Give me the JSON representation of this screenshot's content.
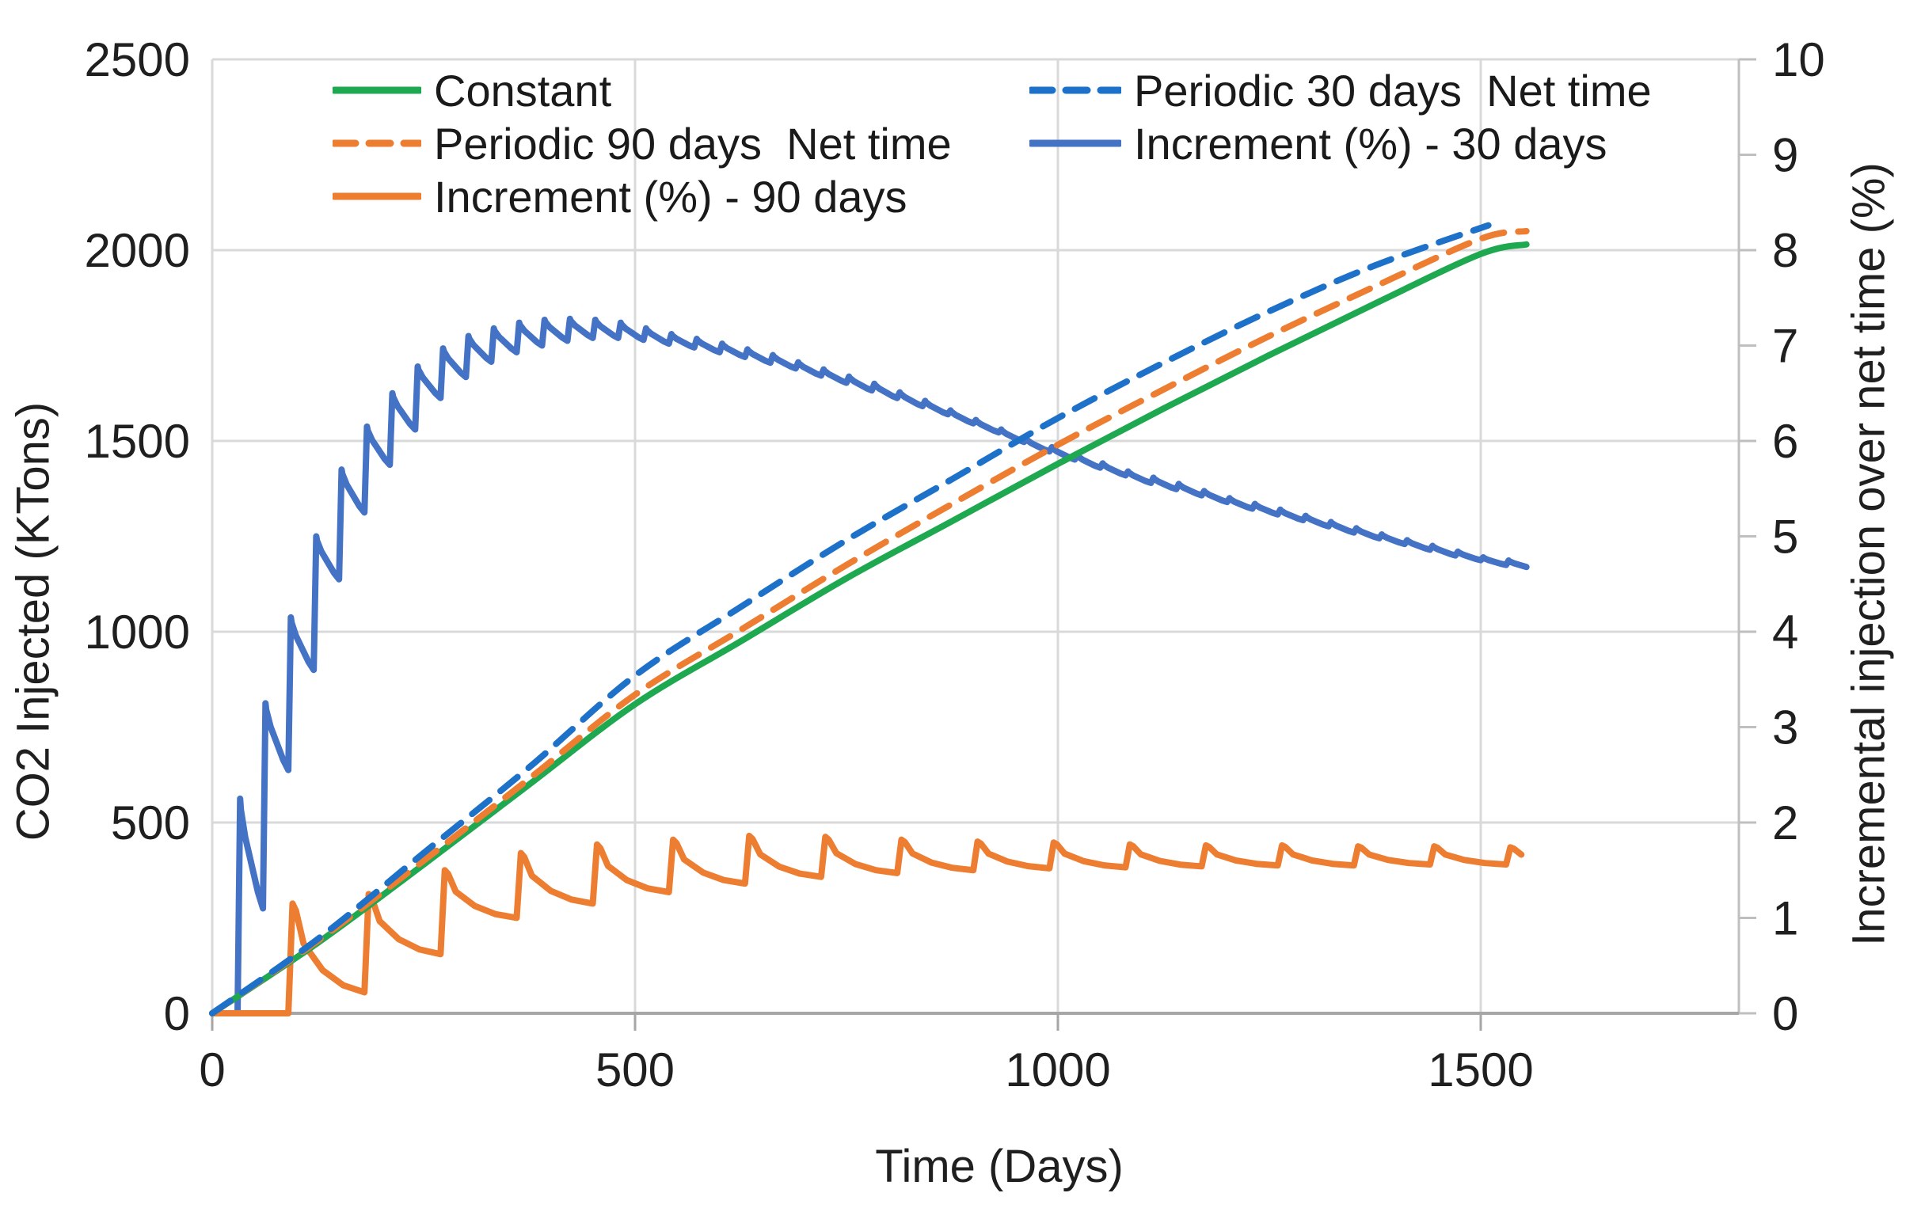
{
  "chart_data": {
    "type": "line",
    "title": "",
    "xlabel": "Time (Days)",
    "ylabel_left": "CO2 Injected (KTons)",
    "ylabel_right": "Incremental injection over net time (%)",
    "xlim": [
      0,
      1800
    ],
    "x_ticks": [
      0,
      500,
      1000,
      1500
    ],
    "ylim_left": [
      0,
      2500
    ],
    "yticks_left": [
      0,
      500,
      1000,
      1500,
      2000,
      2500
    ],
    "ylim_right": [
      0,
      10
    ],
    "yticks_right": [
      0,
      1,
      2,
      3,
      4,
      5,
      6,
      7,
      8,
      9,
      10
    ],
    "grid": "on",
    "legend_position": "top-inside-two-columns",
    "colors": {
      "green": "#1EA850",
      "blue_dashed": "#1E71C8",
      "orange": "#ED7D31",
      "blue_solid": "#4472C4",
      "gridline": "#D9D9D9",
      "axis_line": "#BFBFBF",
      "bottom_axis": "#A6A6A6",
      "text": "#1f1f1f"
    },
    "legend": {
      "entries": [
        {
          "label": "Constant",
          "color": "#1EA850",
          "style": "solid"
        },
        {
          "label": "Periodic 30 days  Net time",
          "color": "#1E71C8",
          "style": "dashed"
        },
        {
          "label": "Periodic 90 days  Net time",
          "color": "#ED7D31",
          "style": "dashed"
        },
        {
          "label": "Increment (%) - 30 days",
          "color": "#4472C4",
          "style": "solid"
        },
        {
          "label": "Increment (%) - 90 days",
          "color": "#ED7D31",
          "style": "solid"
        }
      ]
    },
    "series": [
      {
        "name": "Constant",
        "axis": "left",
        "color": "#1EA850",
        "style": "solid",
        "kind": "anchors",
        "points": [
          [
            0,
            0
          ],
          [
            125,
            185
          ],
          [
            250,
            390
          ],
          [
            375,
            600
          ],
          [
            500,
            810
          ],
          [
            625,
            975
          ],
          [
            750,
            1140
          ],
          [
            875,
            1290
          ],
          [
            1000,
            1440
          ],
          [
            1125,
            1585
          ],
          [
            1250,
            1725
          ],
          [
            1375,
            1860
          ],
          [
            1500,
            1990
          ],
          [
            1554,
            2015
          ]
        ]
      },
      {
        "name": "Periodic 30 days  Net time",
        "axis": "left",
        "color": "#1E71C8",
        "style": "dashed",
        "kind": "anchors",
        "points": [
          [
            0,
            0
          ],
          [
            125,
            195
          ],
          [
            250,
            420
          ],
          [
            375,
            645
          ],
          [
            500,
            885
          ],
          [
            625,
            1065
          ],
          [
            750,
            1240
          ],
          [
            875,
            1400
          ],
          [
            1000,
            1560
          ],
          [
            1125,
            1705
          ],
          [
            1250,
            1840
          ],
          [
            1375,
            1960
          ],
          [
            1509,
            2065
          ]
        ]
      },
      {
        "name": "Periodic 90 days  Net time",
        "axis": "left",
        "color": "#ED7D31",
        "style": "dashed",
        "kind": "anchors",
        "points": [
          [
            0,
            0
          ],
          [
            125,
            190
          ],
          [
            250,
            400
          ],
          [
            375,
            615
          ],
          [
            500,
            835
          ],
          [
            625,
            1005
          ],
          [
            750,
            1175
          ],
          [
            875,
            1335
          ],
          [
            1000,
            1490
          ],
          [
            1125,
            1635
          ],
          [
            1250,
            1775
          ],
          [
            1375,
            1905
          ],
          [
            1500,
            2030
          ],
          [
            1554,
            2050
          ]
        ]
      },
      {
        "name": "Increment (%) - 30 days",
        "axis": "right",
        "color": "#4472C4",
        "style": "solid",
        "kind": "cycles",
        "period": 30,
        "start": 30,
        "end": 1554,
        "rise_days": 3,
        "decay_profile": [
          [
            0.13,
            0.1
          ],
          [
            0.3,
            0.35
          ],
          [
            0.55,
            0.6
          ],
          [
            0.8,
            0.85
          ],
          [
            1,
            1
          ]
        ],
        "peaks": [
          [
            30,
            2.25
          ],
          [
            60,
            3.25
          ],
          [
            90,
            4.15
          ],
          [
            120,
            5.0
          ],
          [
            150,
            5.7
          ],
          [
            180,
            6.15
          ],
          [
            210,
            6.5
          ],
          [
            240,
            6.78
          ],
          [
            270,
            6.97
          ],
          [
            300,
            7.1
          ],
          [
            330,
            7.18
          ],
          [
            360,
            7.24
          ],
          [
            390,
            7.27
          ],
          [
            420,
            7.28
          ],
          [
            450,
            7.27
          ],
          [
            480,
            7.24
          ],
          [
            540,
            7.12
          ],
          [
            600,
            7.02
          ],
          [
            660,
            6.9
          ],
          [
            720,
            6.75
          ],
          [
            780,
            6.6
          ],
          [
            840,
            6.42
          ],
          [
            900,
            6.22
          ],
          [
            960,
            6.02
          ],
          [
            1020,
            5.85
          ],
          [
            1080,
            5.68
          ],
          [
            1140,
            5.55
          ],
          [
            1200,
            5.4
          ],
          [
            1260,
            5.28
          ],
          [
            1320,
            5.15
          ],
          [
            1380,
            5.02
          ],
          [
            1440,
            4.9
          ],
          [
            1500,
            4.78
          ],
          [
            1554,
            4.72
          ]
        ],
        "troughs": [
          [
            30,
            1.1
          ],
          [
            60,
            2.55
          ],
          [
            90,
            3.6
          ],
          [
            120,
            4.55
          ],
          [
            150,
            5.25
          ],
          [
            180,
            5.75
          ],
          [
            210,
            6.12
          ],
          [
            240,
            6.45
          ],
          [
            270,
            6.67
          ],
          [
            300,
            6.83
          ],
          [
            330,
            6.93
          ],
          [
            360,
            7.0
          ],
          [
            390,
            7.05
          ],
          [
            420,
            7.08
          ],
          [
            450,
            7.08
          ],
          [
            480,
            7.06
          ],
          [
            540,
            6.98
          ],
          [
            600,
            6.88
          ],
          [
            660,
            6.76
          ],
          [
            720,
            6.61
          ],
          [
            780,
            6.45
          ],
          [
            840,
            6.28
          ],
          [
            900,
            6.09
          ],
          [
            960,
            5.89
          ],
          [
            1020,
            5.72
          ],
          [
            1080,
            5.56
          ],
          [
            1140,
            5.43
          ],
          [
            1200,
            5.29
          ],
          [
            1260,
            5.17
          ],
          [
            1320,
            5.04
          ],
          [
            1380,
            4.92
          ],
          [
            1440,
            4.8
          ],
          [
            1500,
            4.7
          ],
          [
            1554,
            4.64
          ]
        ]
      },
      {
        "name": "Increment (%) - 90 days",
        "axis": "right",
        "color": "#ED7D31",
        "style": "solid",
        "kind": "cycles",
        "period": 90,
        "start": 90,
        "end": 1554,
        "rise_days": 5,
        "decay_profile": [
          [
            0.1,
            0.08
          ],
          [
            0.2,
            0.45
          ],
          [
            0.45,
            0.75
          ],
          [
            0.72,
            0.92
          ],
          [
            1,
            1
          ]
        ],
        "peaks": [
          [
            90,
            1.15
          ],
          [
            180,
            1.25
          ],
          [
            270,
            1.5
          ],
          [
            360,
            1.68
          ],
          [
            450,
            1.77
          ],
          [
            540,
            1.82
          ],
          [
            630,
            1.86
          ],
          [
            720,
            1.85
          ],
          [
            810,
            1.82
          ],
          [
            900,
            1.8
          ],
          [
            990,
            1.79
          ],
          [
            1080,
            1.77
          ],
          [
            1170,
            1.76
          ],
          [
            1260,
            1.76
          ],
          [
            1350,
            1.75
          ],
          [
            1440,
            1.75
          ],
          [
            1530,
            1.74
          ]
        ],
        "troughs": [
          [
            90,
            0.22
          ],
          [
            180,
            0.62
          ],
          [
            270,
            1.0
          ],
          [
            360,
            1.15
          ],
          [
            450,
            1.27
          ],
          [
            540,
            1.36
          ],
          [
            630,
            1.43
          ],
          [
            720,
            1.47
          ],
          [
            810,
            1.5
          ],
          [
            900,
            1.52
          ],
          [
            990,
            1.53
          ],
          [
            1080,
            1.54
          ],
          [
            1170,
            1.55
          ],
          [
            1260,
            1.55
          ],
          [
            1350,
            1.56
          ],
          [
            1440,
            1.56
          ],
          [
            1530,
            1.57
          ]
        ]
      }
    ]
  }
}
